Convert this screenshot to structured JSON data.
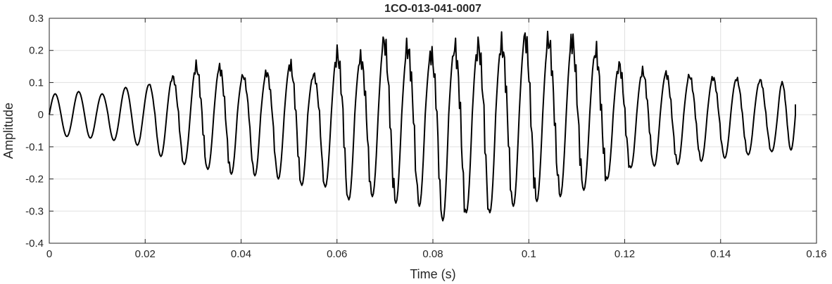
{
  "chart_data": {
    "type": "line",
    "title": "1CO-013-041-0007",
    "xlabel": "Time (s)",
    "ylabel": "Amplitude",
    "xlim": [
      0,
      0.16
    ],
    "ylim": [
      -0.4,
      0.3
    ],
    "xticks": [
      0,
      0.02,
      0.04,
      0.06,
      0.08,
      0.1,
      0.12,
      0.14,
      0.16
    ],
    "xtick_labels": [
      "0",
      "0.02",
      "0.04",
      "0.06",
      "0.08",
      "0.1",
      "0.12",
      "0.14",
      "0.16"
    ],
    "yticks": [
      -0.4,
      -0.3,
      -0.2,
      -0.1,
      0,
      0.1,
      0.2,
      0.3
    ],
    "ytick_labels": [
      "-0.4",
      "-0.3",
      "-0.2",
      "-0.1",
      "0",
      "0.1",
      "0.2",
      "0.3"
    ],
    "grid": true,
    "line_color": "#000000",
    "series": [
      {
        "name": "",
        "x": [
          0,
          0.0049,
          0.0098,
          0.0147,
          0.0196,
          0.0245,
          0.0294,
          0.0343,
          0.0392,
          0.0441,
          0.049,
          0.0539,
          0.0588,
          0.0637,
          0.0686,
          0.0735,
          0.0784,
          0.0833,
          0.0882,
          0.0931,
          0.098,
          0.1029,
          0.1078,
          0.1127,
          0.1176,
          0.1225,
          0.1274,
          0.1323,
          0.1372,
          0.1421,
          0.147,
          0.1519,
          0.1556
        ],
        "peaks": [
          0.065,
          0.072,
          0.065,
          0.085,
          0.095,
          0.118,
          0.15,
          0.145,
          0.12,
          0.13,
          0.155,
          0.125,
          0.188,
          0.175,
          0.225,
          0.205,
          0.188,
          0.21,
          0.215,
          0.218,
          0.238,
          0.228,
          0.23,
          0.198,
          0.155,
          0.135,
          0.128,
          0.12,
          0.115,
          0.112,
          0.108,
          0.1,
          0.032
        ],
        "troughs": [
          -0.068,
          -0.073,
          -0.08,
          -0.095,
          -0.13,
          -0.155,
          -0.17,
          -0.185,
          -0.19,
          -0.2,
          -0.22,
          -0.225,
          -0.265,
          -0.255,
          -0.275,
          -0.285,
          -0.33,
          -0.305,
          -0.305,
          -0.285,
          -0.27,
          -0.255,
          -0.235,
          -0.2,
          -0.165,
          -0.16,
          -0.155,
          -0.145,
          -0.135,
          -0.125,
          -0.115,
          -0.11,
          -0.1
        ]
      }
    ]
  }
}
